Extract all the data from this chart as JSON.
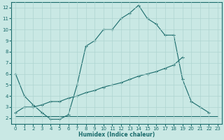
{
  "xlabel": "Humidex (Indice chaleur)",
  "xlim": [
    -0.5,
    23.5
  ],
  "ylim": [
    1.5,
    12.5
  ],
  "xticks": [
    0,
    1,
    2,
    3,
    4,
    5,
    6,
    7,
    8,
    9,
    10,
    11,
    12,
    13,
    14,
    15,
    16,
    17,
    18,
    19,
    20,
    21,
    22,
    23
  ],
  "yticks": [
    2,
    3,
    4,
    5,
    6,
    7,
    8,
    9,
    10,
    11,
    12
  ],
  "bg_color": "#c9e8e4",
  "line_color": "#1a6b6b",
  "grid_color": "#aed4d0",
  "line1_x": [
    0,
    1,
    2,
    3,
    4,
    5,
    6,
    7,
    8,
    9,
    10,
    11,
    12,
    13,
    14,
    15,
    16,
    17,
    18,
    19,
    20,
    21,
    22
  ],
  "line1_y": [
    6,
    4,
    3.2,
    2.5,
    1.9,
    1.9,
    2.3,
    5.0,
    8.5,
    9.0,
    10.0,
    10.0,
    11.0,
    11.5,
    12.2,
    11.0,
    10.5,
    9.5,
    9.5,
    5.5,
    3.5,
    3.0,
    2.5
  ],
  "line2_x": [
    0,
    1,
    2,
    3,
    4,
    5,
    6,
    7,
    8,
    9,
    10,
    11,
    12,
    13,
    14,
    15,
    16,
    17,
    18,
    19,
    20,
    21,
    22
  ],
  "line2_y": [
    2.5,
    3.0,
    3.0,
    3.2,
    3.5,
    3.5,
    3.8,
    4.0,
    4.3,
    4.5,
    4.8,
    5.0,
    5.2,
    5.5,
    5.8,
    6.0,
    6.2,
    6.5,
    6.8,
    7.5,
    null,
    null,
    null
  ],
  "line3_x": [
    0,
    1,
    2,
    3,
    4,
    5,
    6,
    7,
    8,
    9,
    10,
    11,
    12,
    13,
    14,
    15,
    16,
    17,
    18,
    19,
    20,
    21,
    22,
    23
  ],
  "line3_y": [
    2.2,
    2.2,
    2.2,
    2.2,
    2.2,
    2.2,
    2.2,
    2.2,
    2.2,
    2.2,
    2.2,
    2.2,
    2.2,
    2.2,
    2.2,
    2.2,
    2.2,
    2.2,
    2.2,
    2.2,
    2.2,
    2.2,
    2.2,
    2.2
  ]
}
